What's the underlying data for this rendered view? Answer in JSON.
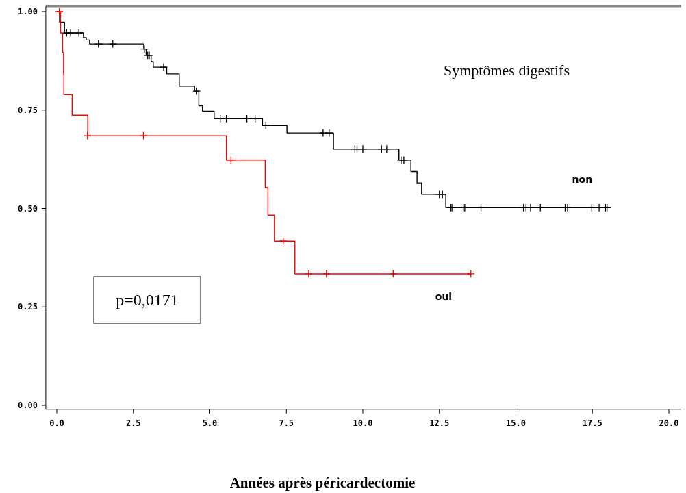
{
  "chart_data": {
    "type": "step",
    "xlabel": "Années après péricardectomie",
    "annotations": [
      "Symptômes digestifs",
      "p=0,0171"
    ],
    "xlim": [
      -0.36,
      20.4
    ],
    "ylim": [
      -0.01,
      1.014
    ],
    "xticks": [
      {
        "value": 0,
        "label": "0.0"
      },
      {
        "value": 2.5,
        "label": "2.5"
      },
      {
        "value": 5,
        "label": "5.0"
      },
      {
        "value": 7.5,
        "label": "7.5"
      },
      {
        "value": 10,
        "label": "10.0"
      },
      {
        "value": 12.5,
        "label": "12.5"
      },
      {
        "value": 15,
        "label": "15.0"
      },
      {
        "value": 17.5,
        "label": "17.5"
      },
      {
        "value": 20,
        "label": "20.0"
      }
    ],
    "yticks": [
      {
        "value": 0,
        "label": "0.00"
      },
      {
        "value": 0.25,
        "label": "0.25"
      },
      {
        "value": 0.5,
        "label": "0.50"
      },
      {
        "value": 0.75,
        "label": "0.75"
      },
      {
        "value": 1,
        "label": "1.00"
      }
    ],
    "grid": false,
    "legend": false,
    "line_style": "solid",
    "series": [
      {
        "name": "non",
        "marker": "none",
        "color": "#000000",
        "x": [
          0,
          0.09,
          0.25,
          0.87,
          0.96,
          1.07,
          2.84,
          2.92,
          3.08,
          3.15,
          3.59,
          4.0,
          4.5,
          4.64,
          4.76,
          5.14,
          6.72,
          7.52,
          9.04,
          11.18,
          11.57,
          11.77,
          11.92,
          12.71,
          18.0
        ],
        "values": [
          1.0,
          0.973,
          0.946,
          0.934,
          0.928,
          0.918,
          0.905,
          0.889,
          0.873,
          0.859,
          0.842,
          0.811,
          0.798,
          0.761,
          0.747,
          0.728,
          0.711,
          0.692,
          0.651,
          0.623,
          0.594,
          0.565,
          0.536,
          0.502,
          0.502
        ]
      },
      {
        "name": "oui",
        "marker": "none",
        "color": "#ff0000",
        "x": [
          0,
          0.12,
          0.19,
          0.22,
          0.23,
          0.5,
          1.01,
          5.54,
          6.81,
          6.9,
          7.11,
          7.78,
          13.53
        ],
        "values": [
          1.0,
          0.946,
          0.896,
          0.841,
          0.789,
          0.737,
          0.685,
          0.623,
          0.553,
          0.483,
          0.417,
          0.334,
          0.334
        ]
      },
      {
        "type": "scatter",
        "marker": "cross",
        "color": "#000000",
        "x": [
          0.32,
          0.45,
          0.72,
          1.36,
          1.83,
          2.86,
          2.97,
          3.02,
          3.49,
          4.57,
          5.34,
          5.54,
          6.21,
          6.48,
          6.83,
          8.7,
          8.9,
          9.74,
          9.81,
          10.0,
          10.61,
          10.78,
          11.25,
          11.34,
          12.5,
          12.6,
          12.87,
          12.91,
          13.28,
          13.33,
          13.86,
          15.25,
          15.33,
          15.48,
          15.8,
          16.61,
          16.69,
          17.48,
          17.72,
          17.93,
          17.98
        ],
        "values": [
          0.946,
          0.946,
          0.946,
          0.918,
          0.918,
          0.905,
          0.889,
          0.889,
          0.859,
          0.798,
          0.728,
          0.728,
          0.728,
          0.728,
          0.711,
          0.692,
          0.692,
          0.651,
          0.651,
          0.651,
          0.651,
          0.651,
          0.623,
          0.623,
          0.536,
          0.536,
          0.502,
          0.502,
          0.502,
          0.502,
          0.502,
          0.502,
          0.502,
          0.502,
          0.502,
          0.502,
          0.502,
          0.502,
          0.502,
          0.502,
          0.502
        ]
      },
      {
        "type": "scatter",
        "marker": "cross",
        "color": "#ff0000",
        "x": [
          0.08,
          1.0,
          2.83,
          5.69,
          7.4,
          8.23,
          8.81,
          10.99,
          13.53
        ],
        "values": [
          1.0,
          0.685,
          0.685,
          0.623,
          0.417,
          0.334,
          0.334,
          0.334,
          0.334
        ]
      }
    ]
  }
}
